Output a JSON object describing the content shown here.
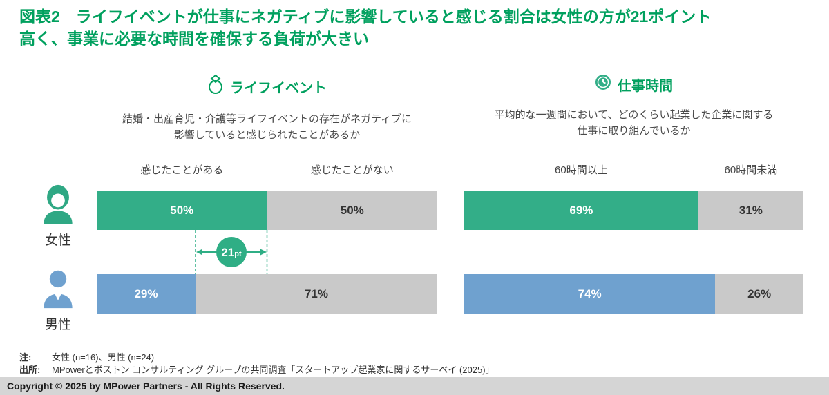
{
  "title": {
    "line1": "図表2　ライフイベントが仕事にネガティブに影響していると感じる割合は女性の方が21ポイント",
    "line2": "高く、事業に必要な時間を確保する負荷が大きい"
  },
  "colors": {
    "brand_green": "#00A05E",
    "bar_green": "#33AE88",
    "bar_blue": "#6FA1CF",
    "bar_gray": "#C9C9C9",
    "footer_gray": "#D5D5D5"
  },
  "chart_data": [
    {
      "type": "bar",
      "title": "ライフイベント",
      "icon": "ring-icon",
      "question": "結婚・出産育児・介護等ライフイベントの存在がネガティブに影響していると感じられたことがあるか",
      "categories": [
        "女性",
        "男性"
      ],
      "series": [
        {
          "name": "感じたことがある",
          "values": [
            50,
            29
          ]
        },
        {
          "name": "感じたことがない",
          "values": [
            50,
            71
          ]
        }
      ],
      "unit": "%",
      "xlim": [
        0,
        100
      ],
      "annotation": "21pt"
    },
    {
      "type": "bar",
      "title": "仕事時間",
      "icon": "clock-icon",
      "question": "平均的な一週間において、どのくらい起業した企業に関する仕事に取り組んでいるか",
      "categories": [
        "女性",
        "男性"
      ],
      "series": [
        {
          "name": "60時間以上",
          "values": [
            69,
            74
          ]
        },
        {
          "name": "60時間未満",
          "values": [
            31,
            26
          ]
        }
      ],
      "unit": "%",
      "xlim": [
        0,
        100
      ]
    }
  ],
  "questions": {
    "life": [
      "結婚・出産育児・介護等ライフイベントの存在がネガティブに",
      "影響していると感じられたことがあるか"
    ],
    "work": [
      "平均的な一週間において、どのくらい起業した企業に関する",
      "仕事に取り組んでいるか"
    ]
  },
  "bar_labels": {
    "life": {
      "female_left": "50%",
      "female_right": "50%",
      "male_left": "29%",
      "male_right": "71%"
    },
    "work": {
      "female_left": "69%",
      "female_right": "31%",
      "male_left": "74%",
      "male_right": "26%"
    }
  },
  "annotation": {
    "value": "21",
    "unit": "pt"
  },
  "genders": {
    "female": "女性",
    "male": "男性"
  },
  "notes": {
    "note_label": "注:",
    "note_text": "女性 (n=16)、男性 (n=24)",
    "source_label": "出所:",
    "source_text": "MPowerとボストン コンサルティング グループの共同調査「スタートアップ起業家に関するサーベイ (2025)」"
  },
  "footer": {
    "copyright": "Copyright © 2025 by MPower Partners - All Rights Reserved."
  }
}
